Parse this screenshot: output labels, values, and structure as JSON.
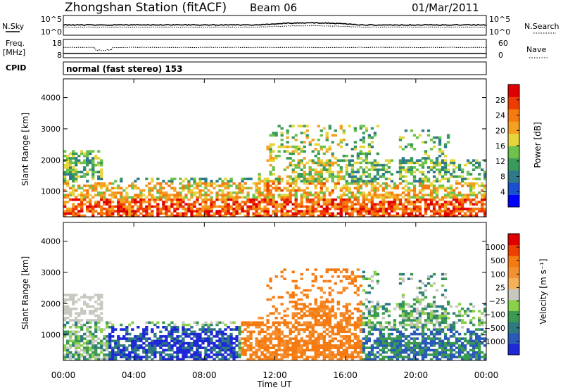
{
  "header": {
    "title": "Zhongshan Station (fitACF)",
    "beam": "Beam 06",
    "date": "01/Mar/2011"
  },
  "top_panels": {
    "nsky_label": "N.Sky",
    "nsearch_label": "N.Search",
    "noise_ticks": [
      "10^5",
      "10^0"
    ],
    "freq_label": "Freq.",
    "freq_unit": "[MHz]",
    "freq_ticks": [
      "18",
      "8"
    ],
    "nave_ticks": [
      "60",
      "0"
    ],
    "nave_label": "Nave",
    "cpid_label": "CPID",
    "cpid_text": "normal (fast stereo) 153"
  },
  "colorbars": {
    "power": {
      "label": "Power [dB]",
      "ticks": [
        "28",
        "24",
        "20",
        "16",
        "12",
        "8",
        "4"
      ],
      "colors": [
        "#0000ff",
        "#1a4fd0",
        "#2e7a8a",
        "#3a9a5a",
        "#6cc24a",
        "#e6d43c",
        "#f5a020",
        "#f57a10",
        "#ee3c00",
        "#e00000"
      ]
    },
    "velocity": {
      "label": "Velocity [m s⁻¹]",
      "ticks": [
        "1000",
        "500",
        "100",
        "25",
        "−25",
        "−100",
        "−500",
        "−1000"
      ],
      "colors": [
        "#1e28d8",
        "#2a5ab8",
        "#2e7a80",
        "#3a9a52",
        "#8ad04a",
        "#c8c8c0",
        "#f5b05a",
        "#f59030",
        "#f57a10",
        "#ee4000",
        "#e00000"
      ]
    }
  },
  "chart_data": [
    {
      "type": "heatmap",
      "title": "Power",
      "ylabel": "Slant Range [km]",
      "xlabel": "Time UT",
      "x_ticks": [
        "00:00",
        "04:00",
        "08:00",
        "12:00",
        "16:00",
        "20:00",
        "00:00"
      ],
      "y_ticks": [
        "1000",
        "2000",
        "3000",
        "4000"
      ],
      "ylim": [
        180,
        4600
      ],
      "xlim_hours": [
        0,
        24
      ]
    },
    {
      "type": "heatmap",
      "title": "Velocity",
      "ylabel": "Slant Range [km]",
      "xlabel": "Time UT",
      "x_ticks": [
        "00:00",
        "04:00",
        "08:00",
        "12:00",
        "16:00",
        "20:00",
        "00:00"
      ],
      "y_ticks": [
        "1000",
        "2000",
        "3000",
        "4000"
      ],
      "ylim": [
        180,
        4600
      ],
      "xlim_hours": [
        0,
        24
      ]
    }
  ]
}
